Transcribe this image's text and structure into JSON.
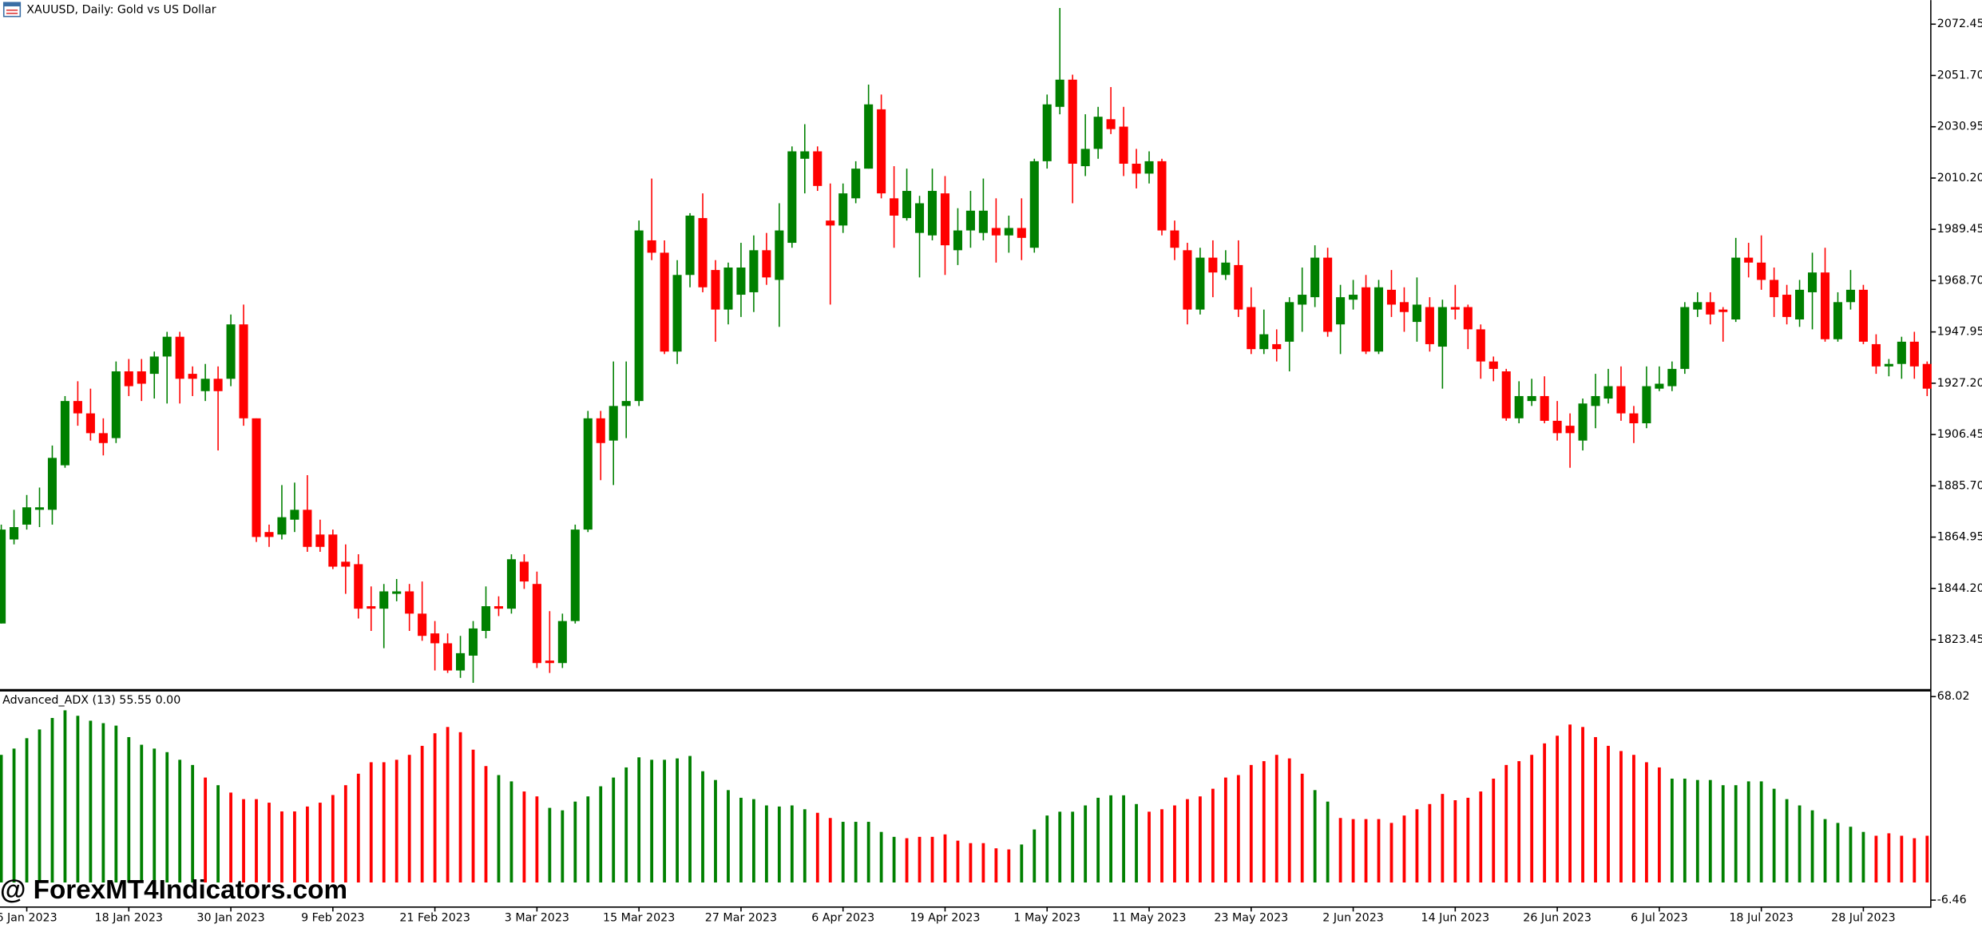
{
  "chart_data": [
    {
      "type": "candlestick",
      "title": "XAUUSD, Daily:  Gold vs US Dollar",
      "categories": [
        null,
        null,
        "6 Jan 2023",
        null,
        null,
        null,
        null,
        null,
        null,
        null,
        "18 Jan 2023",
        null,
        null,
        null,
        null,
        null,
        null,
        null,
        "30 Jan 2023",
        null,
        null,
        null,
        null,
        null,
        null,
        null,
        "9 Feb 2023",
        null,
        null,
        null,
        null,
        null,
        null,
        null,
        "21 Feb 2023",
        null,
        null,
        null,
        null,
        null,
        null,
        null,
        "3 Mar 2023",
        null,
        null,
        null,
        null,
        null,
        null,
        null,
        "15 Mar 2023",
        null,
        null,
        null,
        null,
        null,
        null,
        null,
        "27 Mar 2023",
        null,
        null,
        null,
        null,
        null,
        null,
        null,
        "6 Apr 2023",
        null,
        null,
        null,
        null,
        null,
        null,
        null,
        "19 Apr 2023",
        null,
        null,
        null,
        null,
        null,
        null,
        null,
        "1 May 2023",
        null,
        null,
        null,
        null,
        null,
        null,
        null,
        "11 May 2023",
        null,
        null,
        null,
        null,
        null,
        null,
        null,
        "23 May 2023",
        null,
        null,
        null,
        null,
        null,
        null,
        null,
        "2 Jun 2023",
        null,
        null,
        null,
        null,
        null,
        null,
        null,
        "14 Jun 2023",
        null,
        null,
        null,
        null,
        null,
        null,
        null,
        "26 Jun 2023",
        null,
        null,
        null,
        null,
        null,
        null,
        null,
        "6 Jul 2023",
        null,
        null,
        null,
        null,
        null,
        null,
        null,
        "18 Jul 2023",
        null,
        null,
        null,
        null,
        null,
        null,
        null,
        "28 Jul 2023",
        null,
        null,
        null,
        null,
        null
      ],
      "open": [
        1830,
        1864,
        1870,
        1876,
        1876,
        1894,
        1920,
        1915,
        1907,
        1905,
        1932,
        1932,
        1931,
        1938,
        1946,
        1931,
        1924,
        1929,
        1929,
        1951,
        1913,
        1867,
        1866,
        1872,
        1876,
        1866,
        1866,
        1855,
        1854,
        1837,
        1836,
        1842,
        1843,
        1834,
        1826,
        1822,
        1811,
        1817,
        1827,
        1837,
        1836,
        1855,
        1846,
        1815,
        1814,
        1831,
        1868,
        1913,
        1904,
        1918,
        1920,
        1985,
        1980,
        1940,
        1971,
        1994,
        1973,
        1957,
        1963,
        1964,
        1981,
        1969,
        1984,
        2018,
        2021,
        1993,
        1991,
        2002,
        2014,
        2038,
        2002,
        1994,
        1988,
        1987,
        2004,
        1981,
        1989,
        1988,
        1990,
        1987,
        1990,
        1982,
        2017,
        2039,
        2050,
        2015,
        2022,
        2034,
        2031,
        2016,
        2012,
        2017,
        1989,
        1981,
        1957,
        1978,
        1971,
        1975,
        1958,
        1941,
        1943,
        1944,
        1959,
        1962,
        1978,
        1951,
        1961,
        1966,
        1940,
        1965,
        1960,
        1952,
        1958,
        1942,
        1958,
        1958,
        1949,
        1936,
        1932,
        1913,
        1920,
        1922,
        1912,
        1910,
        1904,
        1918,
        1921,
        1926,
        1915,
        1911,
        1925,
        1926,
        1933,
        1957,
        1960,
        1957,
        1953,
        1978,
        1976,
        1969,
        1963,
        1953,
        1964,
        1972,
        1945,
        1960,
        1965,
        1943,
        1934,
        1935,
        1944,
        1935
      ],
      "high": [
        1870,
        1876,
        1882,
        1885,
        1902,
        1922,
        1928,
        1925,
        1913,
        1936,
        1937,
        1937,
        1940,
        1948,
        1948,
        1934,
        1935,
        1934,
        1955,
        1959,
        1913,
        1870,
        1886,
        1887,
        1890,
        1872,
        1868,
        1862,
        1858,
        1845,
        1846,
        1848,
        1846,
        1847,
        1831,
        1826,
        1825,
        1831,
        1845,
        1841,
        1858,
        1858,
        1851,
        1835,
        1834,
        1870,
        1916,
        1916,
        1936,
        1936,
        1993,
        2010,
        1985,
        1977,
        1996,
        2004,
        1977,
        1976,
        1984,
        1987,
        1988,
        2000,
        2023,
        2032,
        2023,
        2008,
        2008,
        2017,
        2048,
        2044,
        2015,
        2014,
        2003,
        2014,
        2011,
        1998,
        2005,
        2010,
        2002,
        1995,
        2002,
        2018,
        2044,
        2079,
        2052,
        2036,
        2039,
        2047,
        2039,
        2022,
        2021,
        2018,
        1993,
        1984,
        1982,
        1985,
        1981,
        1985,
        1966,
        1957,
        1949,
        1962,
        1974,
        1983,
        1982,
        1967,
        1969,
        1971,
        1969,
        1973,
        1966,
        1970,
        1962,
        1961,
        1967,
        1959,
        1951,
        1938,
        1933,
        1928,
        1929,
        1930,
        1920,
        1915,
        1921,
        1931,
        1933,
        1934,
        1918,
        1934,
        1934,
        1936,
        1960,
        1964,
        1964,
        1958,
        1986,
        1984,
        1987,
        1974,
        1967,
        1969,
        1980,
        1982,
        1964,
        1973,
        1967,
        1947,
        1937,
        1946,
        1948,
        1936
      ],
      "low": [
        1830,
        1862,
        1868,
        1869,
        1870,
        1893,
        1910,
        1904,
        1898,
        1903,
        1922,
        1920,
        1921,
        1919,
        1919,
        1922,
        1920,
        1900,
        1926,
        1910,
        1863,
        1861,
        1864,
        1867,
        1859,
        1859,
        1852,
        1842,
        1832,
        1827,
        1820,
        1839,
        1827,
        1823,
        1811,
        1810,
        1808,
        1806,
        1824,
        1833,
        1834,
        1844,
        1812,
        1810,
        1812,
        1830,
        1867,
        1888,
        1886,
        1905,
        1918,
        1977,
        1939,
        1935,
        1966,
        1964,
        1944,
        1951,
        1954,
        1956,
        1967,
        1950,
        1982,
        2004,
        2005,
        1959,
        1988,
        2000,
        2014,
        2002,
        1982,
        1993,
        1970,
        1985,
        1971,
        1975,
        1982,
        1985,
        1976,
        1980,
        1977,
        1980,
        2014,
        2036,
        2000,
        2011,
        2018,
        2028,
        2011,
        2006,
        2008,
        1987,
        1977,
        1951,
        1955,
        1962,
        1969,
        1954,
        1939,
        1939,
        1936,
        1932,
        1948,
        1958,
        1946,
        1939,
        1957,
        1939,
        1939,
        1954,
        1948,
        1944,
        1940,
        1925,
        1953,
        1941,
        1929,
        1928,
        1912,
        1911,
        1918,
        1911,
        1904,
        1893,
        1900,
        1909,
        1919,
        1912,
        1903,
        1909,
        1924,
        1924,
        1931,
        1954,
        1951,
        1944,
        1952,
        1970,
        1965,
        1954,
        1951,
        1950,
        1949,
        1944,
        1944,
        1957,
        1943,
        1931,
        1930,
        1929,
        1929,
        1922
      ],
      "close": [
        1868,
        1869,
        1877,
        1877,
        1897,
        1920,
        1915,
        1907,
        1903,
        1932,
        1926,
        1927,
        1938,
        1946,
        1929,
        1929,
        1929,
        1924,
        1951,
        1913,
        1865,
        1865,
        1873,
        1876,
        1861,
        1861,
        1853,
        1853,
        1836,
        1836,
        1843,
        1843,
        1834,
        1825,
        1822,
        1811,
        1818,
        1828,
        1837,
        1836,
        1856,
        1847,
        1814,
        1814,
        1831,
        1868,
        1913,
        1903,
        1918,
        1920,
        1989,
        1980,
        1940,
        1971,
        1995,
        1966,
        1957,
        1974,
        1974,
        1981,
        1970,
        1989,
        2021,
        2021,
        2007,
        1991,
        2004,
        2014,
        2040,
        2004,
        1995,
        2005,
        2000,
        2005,
        1983,
        1989,
        1997,
        1997,
        1987,
        1990,
        1986,
        2017,
        2040,
        2050,
        2016,
        2022,
        2035,
        2030,
        2016,
        2012,
        2017,
        1989,
        1982,
        1957,
        1978,
        1972,
        1976,
        1957,
        1941,
        1947,
        1941,
        1960,
        1963,
        1978,
        1948,
        1962,
        1963,
        1940,
        1966,
        1959,
        1956,
        1959,
        1943,
        1958,
        1957,
        1949,
        1936,
        1933,
        1913,
        1922,
        1922,
        1912,
        1907,
        1907,
        1919,
        1922,
        1926,
        1915,
        1911,
        1926,
        1927,
        1933,
        1958,
        1960,
        1955,
        1956,
        1978,
        1976,
        1969,
        1962,
        1954,
        1965,
        1972,
        1945,
        1960,
        1965,
        1944,
        1934,
        1935,
        1944,
        1934,
        1925
      ],
      "up_color": "#008000",
      "down_color": "#ff0000",
      "ylim": [
        1803.5,
        2082.2
      ],
      "yticks": [
        2072.45,
        {
          "value": 2051.7,
          "label": "2051.70"
        },
        2030.95,
        {
          "value": 2010.2,
          "label": "2010.20"
        },
        1989.45,
        {
          "value": 1968.7,
          "label": "1968.70"
        },
        1947.95,
        {
          "value": 1927.2,
          "label": "1927.20"
        },
        1906.45,
        {
          "value": 1885.7,
          "label": "1885.70"
        },
        1864.95,
        {
          "value": 1844.2,
          "label": "1844.20"
        },
        1823.45
      ]
    },
    {
      "type": "bar",
      "title": "Advanced_ADX (13) 55.55 0.00",
      "values": [
        46.7,
        49,
        52.8,
        56,
        60.2,
        63,
        61,
        59.2,
        58.3,
        57.4,
        53.2,
        50.4,
        49,
        47.7,
        44.9,
        43,
        38.4,
        35.6,
        32.9,
        30.5,
        30.5,
        29.2,
        26,
        26,
        27.8,
        29.2,
        32,
        35.6,
        39.8,
        44,
        44,
        44.9,
        46.7,
        50,
        54.6,
        56.9,
        55,
        48.6,
        42.6,
        39.3,
        37,
        33.3,
        31.5,
        27.3,
        26.4,
        29.6,
        31.5,
        35.2,
        38.4,
        42.1,
        45.8,
        44.9,
        44.9,
        45.4,
        46.3,
        40.7,
        37.5,
        33.8,
        31,
        30.5,
        28.2,
        27.8,
        28.2,
        26.8,
        25.5,
        23.6,
        22.2,
        22.2,
        22.2,
        18.5,
        16.7,
        16.2,
        16.7,
        16.7,
        17.6,
        15.3,
        14.4,
        14.4,
        12.5,
        12.1,
        13.9,
        19.4,
        24.5,
        25.9,
        25.9,
        28.2,
        31,
        31.9,
        31.9,
        28.7,
        25.9,
        26.8,
        28.2,
        30.5,
        31.5,
        34.3,
        38.4,
        39.3,
        43,
        44.4,
        46.7,
        45.4,
        39.8,
        33.8,
        29.6,
        23.6,
        23.2,
        23.2,
        23.2,
        21.8,
        24.5,
        26.8,
        28.7,
        32.4,
        30.1,
        31,
        33.3,
        38,
        43,
        44.4,
        46.7,
        50.9,
        53.7,
        57.8,
        56.9,
        53.2,
        50,
        48.1,
        46.7,
        44,
        42.1,
        38,
        38,
        37.5,
        37.5,
        35.6,
        35.6,
        37,
        37,
        34.3,
        30.5,
        28.2,
        26.4,
        23.2,
        21.8,
        20.4,
        18.5,
        17.1,
        18,
        17.1,
        16.2,
        17.1
      ],
      "directions": [
        "up",
        "up",
        "up",
        "up",
        "up",
        "up",
        "up",
        "up",
        "up",
        "up",
        "up",
        "up",
        "up",
        "up",
        "up",
        "up",
        "down",
        "up",
        "down",
        "down",
        "down",
        "down",
        "down",
        "down",
        "down",
        "down",
        "down",
        "down",
        "down",
        "down",
        "down",
        "down",
        "down",
        "down",
        "down",
        "down",
        "down",
        "down",
        "down",
        "up",
        "up",
        "down",
        "down",
        "up",
        "up",
        "up",
        "up",
        "up",
        "up",
        "up",
        "up",
        "up",
        "up",
        "up",
        "up",
        "up",
        "up",
        "up",
        "up",
        "up",
        "up",
        "up",
        "up",
        "up",
        "down",
        "down",
        "up",
        "up",
        "up",
        "up",
        "up",
        "down",
        "down",
        "down",
        "down",
        "down",
        "down",
        "down",
        "down",
        "down",
        "up",
        "up",
        "up",
        "up",
        "up",
        "up",
        "up",
        "up",
        "up",
        "up",
        "down",
        "down",
        "down",
        "down",
        "down",
        "down",
        "down",
        "down",
        "down",
        "down",
        "down",
        "down",
        "down",
        "up",
        "up",
        "down",
        "down",
        "down",
        "down",
        "down",
        "down",
        "down",
        "down",
        "down",
        "down",
        "down",
        "down",
        "down",
        "down",
        "down",
        "down",
        "down",
        "down",
        "down",
        "down",
        "down",
        "down",
        "down",
        "down",
        "down",
        "down",
        "up",
        "up",
        "up",
        "up",
        "up",
        "up",
        "up",
        "up",
        "up",
        "up",
        "up",
        "up",
        "up",
        "up",
        "up",
        "up",
        "down",
        "down",
        "down",
        "down",
        "down"
      ],
      "colors": {
        "up": "#008000",
        "down": "#ff0000"
      },
      "ylim": [
        -6.46,
        68.02
      ],
      "yticks": [
        68.02,
        -6.46
      ]
    }
  ],
  "watermark": "@ ForexMT4Indicators.com"
}
